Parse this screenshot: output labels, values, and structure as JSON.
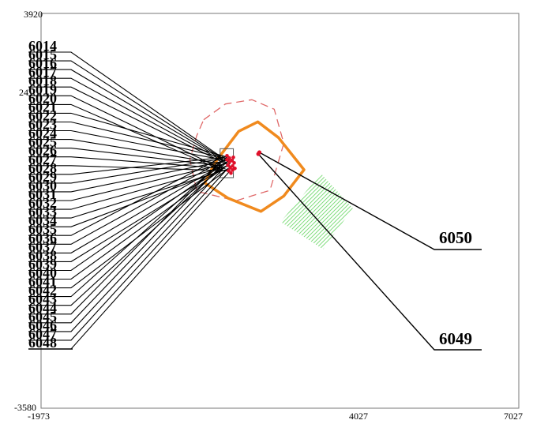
{
  "chart_data": {
    "type": "scatter",
    "title": "",
    "xlabel": "",
    "ylabel": "",
    "xlim": [
      -1973,
      7027
    ],
    "ylim": [
      -3580,
      3920
    ],
    "axis_ticks": {
      "x": [
        "-1973",
        "4027",
        "7027"
      ],
      "y_top": "3920",
      "y_mid_partial": "24",
      "y_bottom": "-3580"
    },
    "labeled_points": [
      {
        "label": "6050",
        "x": 2140,
        "y": 1280
      },
      {
        "label": "6049",
        "x": 2120,
        "y": 1250
      }
    ],
    "stacked_label_group": {
      "top_label": "6014",
      "visible_bottom_label": "6048",
      "count": 35,
      "cluster_center": {
        "x": 1500,
        "y": 1050
      }
    },
    "regions": [
      {
        "name": "dashed",
        "color": "#e06a6a",
        "style": "dashed",
        "points": [
          [
            1090,
            1900
          ],
          [
            1500,
            2200
          ],
          [
            2000,
            2280
          ],
          [
            2420,
            2100
          ],
          [
            2600,
            1450
          ],
          [
            2340,
            560
          ],
          [
            1700,
            360
          ],
          [
            960,
            540
          ],
          [
            830,
            1150
          ],
          [
            960,
            1600
          ]
        ]
      },
      {
        "name": "solid-orange",
        "color": "#f08a1e",
        "style": "solid",
        "points": [
          [
            1350,
            1150
          ],
          [
            1750,
            1680
          ],
          [
            2110,
            1860
          ],
          [
            2500,
            1560
          ],
          [
            2980,
            950
          ],
          [
            2600,
            450
          ],
          [
            2170,
            160
          ],
          [
            1550,
            410
          ],
          [
            1110,
            700
          ],
          [
            1260,
            1000
          ]
        ]
      },
      {
        "name": "hatched-green",
        "color": "#7ddc7a",
        "style": "hatch",
        "points": [
          [
            3300,
            880
          ],
          [
            3900,
            220
          ],
          [
            3340,
            -560
          ],
          [
            2540,
            -40
          ]
        ]
      }
    ],
    "bounding_box": {
      "x": [
        1400,
        1650
      ],
      "y": [
        800,
        1350
      ]
    }
  }
}
